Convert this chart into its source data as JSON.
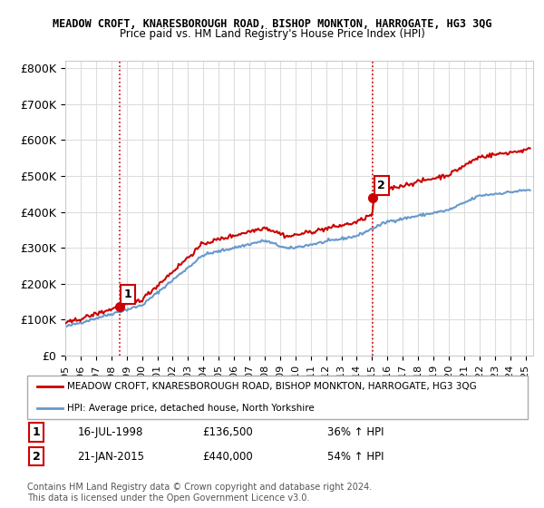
{
  "title1": "MEADOW CROFT, KNARESBOROUGH ROAD, BISHOP MONKTON, HARROGATE, HG3 3QG",
  "title2": "Price paid vs. HM Land Registry's House Price Index (HPI)",
  "ylabel_ticks": [
    "£0",
    "£100K",
    "£200K",
    "£300K",
    "£400K",
    "£500K",
    "£600K",
    "£700K",
    "£800K"
  ],
  "ytick_vals": [
    0,
    100000,
    200000,
    300000,
    400000,
    500000,
    600000,
    700000,
    800000
  ],
  "ylim": [
    0,
    820000
  ],
  "xlim_start": 1995.0,
  "xlim_end": 2025.5,
  "sale1_x": 1998.54,
  "sale1_y": 136500,
  "sale2_x": 2015.05,
  "sale2_y": 440000,
  "sale1_label": "1",
  "sale2_label": "2",
  "sale_color": "#cc0000",
  "hpi_color": "#6699cc",
  "vline_color": "#cc0000",
  "vline_style": ":",
  "legend_line1": "MEADOW CROFT, KNARESBOROUGH ROAD, BISHOP MONKTON, HARROGATE, HG3 3QG",
  "legend_line2": "HPI: Average price, detached house, North Yorkshire",
  "annotation1_date": "16-JUL-1998",
  "annotation1_price": "£136,500",
  "annotation1_hpi": "36% ↑ HPI",
  "annotation2_date": "21-JAN-2015",
  "annotation2_price": "£440,000",
  "annotation2_hpi": "54% ↑ HPI",
  "copyright_text": "Contains HM Land Registry data © Crown copyright and database right 2024.\nThis data is licensed under the Open Government Licence v3.0.",
  "xtick_years": [
    1995,
    1996,
    1997,
    1998,
    1999,
    2000,
    2001,
    2002,
    2003,
    2004,
    2005,
    2006,
    2007,
    2008,
    2009,
    2010,
    2011,
    2012,
    2013,
    2014,
    2015,
    2016,
    2017,
    2018,
    2019,
    2020,
    2021,
    2022,
    2023,
    2024,
    2025
  ],
  "bg_color": "#ffffff",
  "grid_color": "#dddddd"
}
